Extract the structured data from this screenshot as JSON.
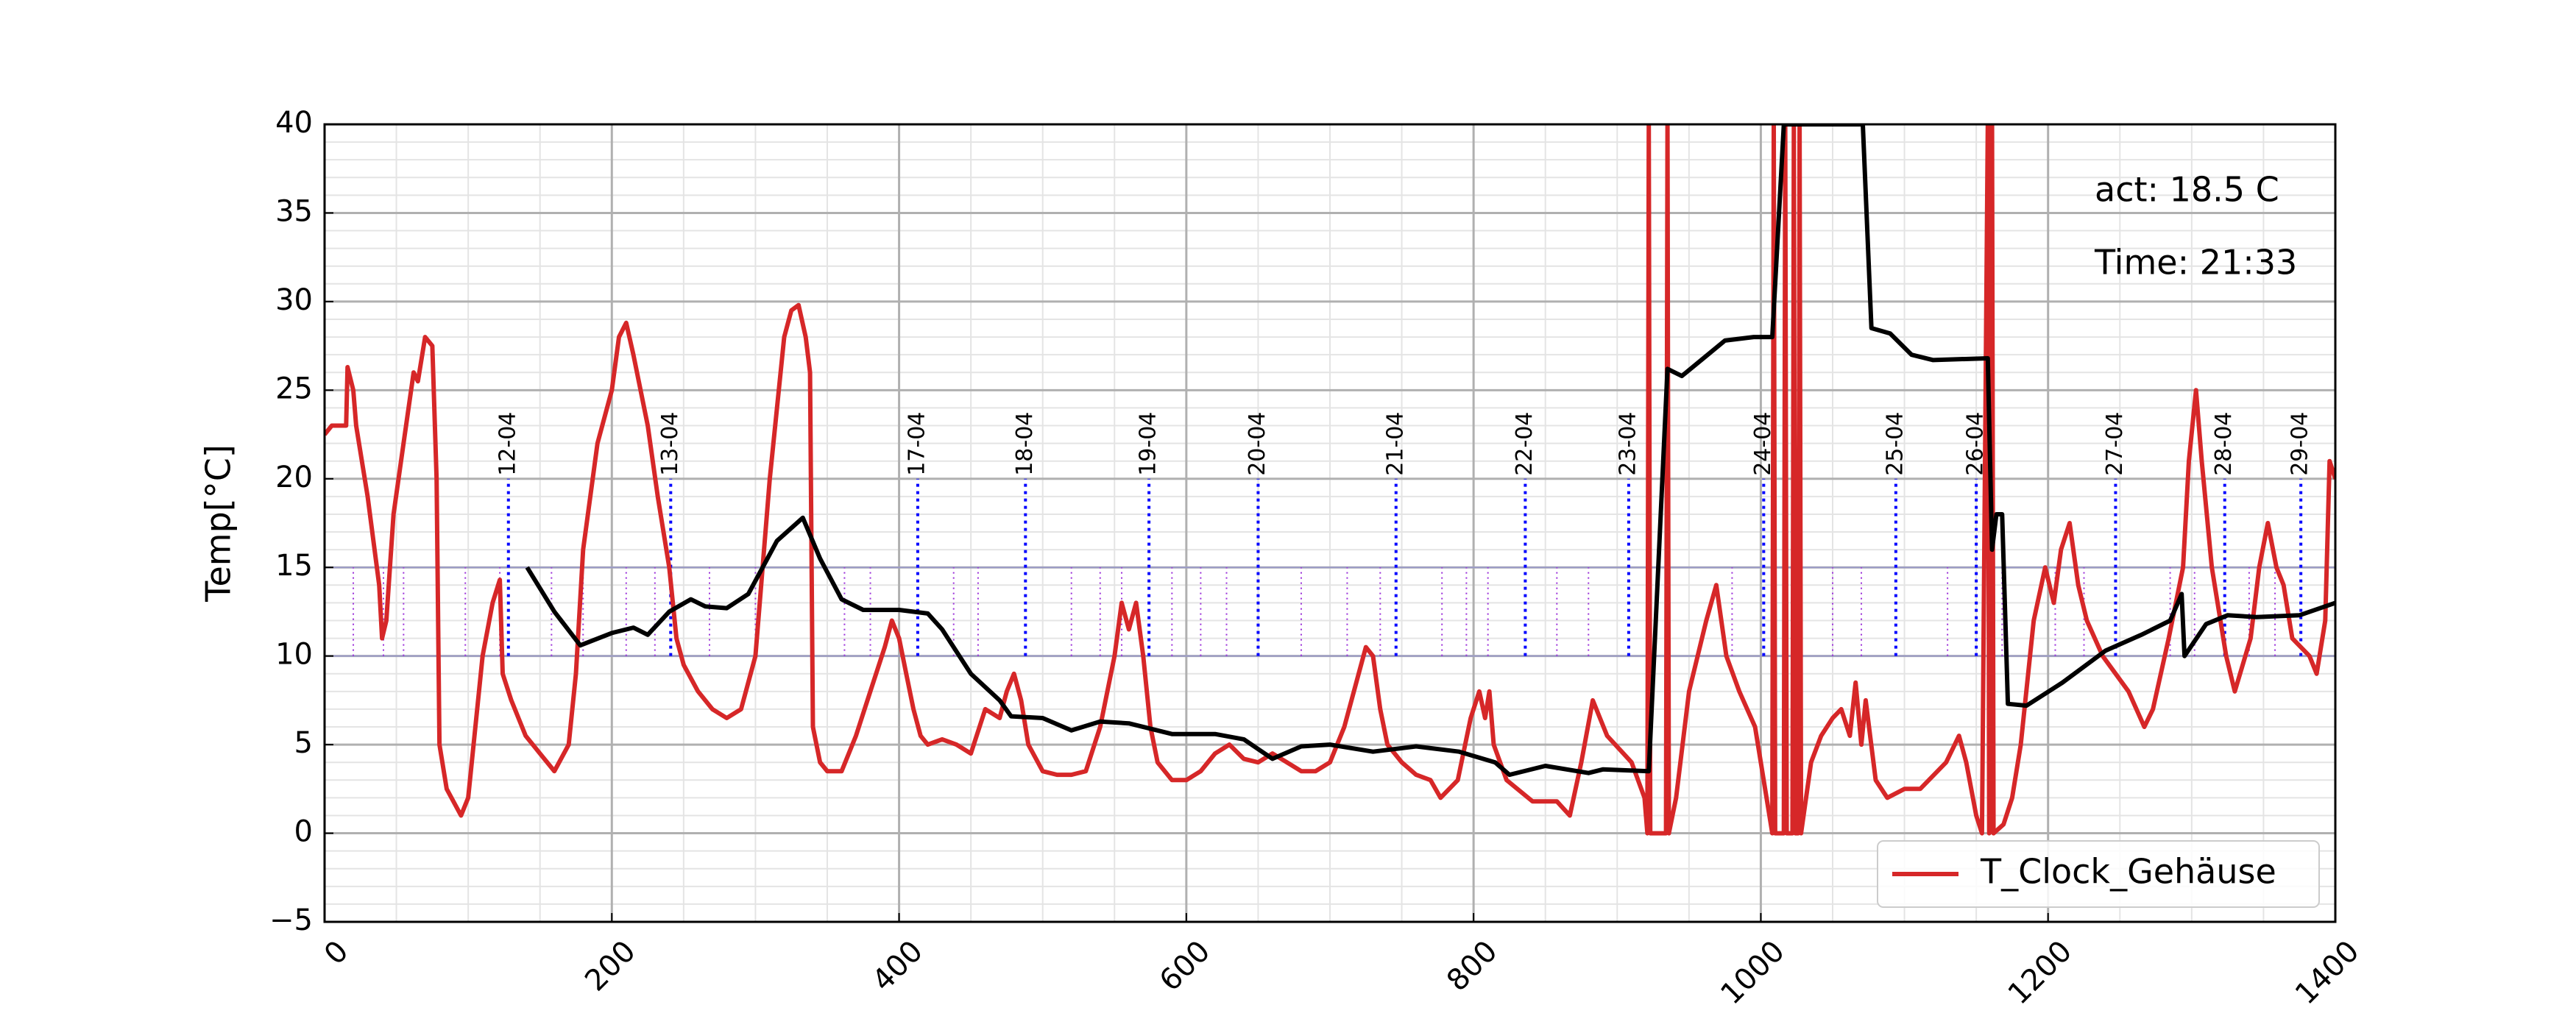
{
  "chart_data": {
    "type": "line",
    "ylabel": "Temp[°C]",
    "xlim": [
      0,
      1400
    ],
    "ylim": [
      -5,
      40
    ],
    "xticks": [
      0,
      200,
      400,
      600,
      800,
      1000,
      1200,
      1400
    ],
    "yticks": [
      {
        "value": -5,
        "label": "−5"
      },
      0,
      5,
      10,
      15,
      20,
      25,
      30,
      35,
      40
    ],
    "xminorticks": [
      50,
      100,
      150,
      250,
      300,
      350,
      450,
      500,
      550,
      650,
      700,
      750,
      850,
      900,
      950,
      1050,
      1100,
      1150,
      1250,
      1300,
      1350
    ],
    "yminorticks": [
      -4,
      -3,
      -2,
      -1,
      1,
      2,
      3,
      4,
      6,
      7,
      8,
      9,
      11,
      12,
      13,
      14,
      16,
      17,
      18,
      19,
      21,
      22,
      23,
      24,
      26,
      27,
      28,
      29,
      31,
      32,
      33,
      34,
      36,
      37,
      38,
      39
    ],
    "grid": true,
    "legend": "lower right",
    "annotations": [
      "act: 18.5 C",
      "Time: 21:33"
    ],
    "band": [
      10,
      15
    ],
    "marker_span": [
      10,
      20
    ],
    "day_markers": [
      {
        "x": 128,
        "label": "12-04"
      },
      {
        "x": 241,
        "label": "13-04"
      },
      {
        "x": 413,
        "label": "17-04"
      },
      {
        "x": 488,
        "label": "18-04"
      },
      {
        "x": 574,
        "label": "19-04"
      },
      {
        "x": 650,
        "label": "20-04"
      },
      {
        "x": 746,
        "label": "21-04"
      },
      {
        "x": 836,
        "label": "22-04"
      },
      {
        "x": 908,
        "label": "23-04"
      },
      {
        "x": 1002,
        "label": "24-04"
      },
      {
        "x": 1094,
        "label": "25-04"
      },
      {
        "x": 1150,
        "label": "26-04"
      },
      {
        "x": 1247,
        "label": "27-04"
      },
      {
        "x": 1323,
        "label": "28-04"
      },
      {
        "x": 1376,
        "label": "29-04"
      }
    ],
    "hour_marks": [
      20,
      41,
      55,
      98,
      122,
      158,
      180,
      210,
      230,
      268,
      300,
      340,
      362,
      380,
      438,
      455,
      520,
      540,
      555,
      590,
      610,
      628,
      680,
      712,
      735,
      778,
      795,
      810,
      858,
      880,
      935,
      980,
      1050,
      1070,
      1130,
      1168,
      1205,
      1225,
      1285,
      1302,
      1340,
      1358
    ],
    "series": [
      {
        "name": "T_Clock_Gehäuse",
        "color": "#d62728",
        "x": [
          0,
          5,
          15,
          16,
          20,
          22,
          30,
          38,
          40,
          43,
          48,
          55,
          62,
          65,
          70,
          75,
          78,
          80,
          85,
          95,
          100,
          105,
          110,
          117,
          122,
          124,
          130,
          140,
          150,
          160,
          170,
          175,
          180,
          190,
          200,
          205,
          210,
          215,
          225,
          232,
          240,
          245,
          250,
          260,
          270,
          280,
          290,
          300,
          310,
          315,
          320,
          325,
          330,
          335,
          338,
          340,
          345,
          350,
          360,
          370,
          380,
          390,
          395,
          400,
          405,
          410,
          415,
          420,
          430,
          440,
          450,
          460,
          470,
          475,
          480,
          485,
          490,
          500,
          510,
          520,
          530,
          540,
          550,
          555,
          560,
          565,
          570,
          575,
          580,
          590,
          600,
          610,
          620,
          630,
          640,
          650,
          660,
          670,
          680,
          690,
          700,
          710,
          720,
          725,
          730,
          735,
          740,
          750,
          760,
          770,
          777,
          789,
          798,
          804,
          808,
          811,
          814,
          823,
          841,
          858,
          867,
          875,
          883,
          893,
          910,
          919,
          921,
          922,
          923,
          934,
          935,
          936,
          941,
          950,
          962,
          969,
          976,
          985,
          996,
          1002,
          1008,
          1009,
          1010,
          1016,
          1017,
          1018,
          1022,
          1023,
          1024,
          1026,
          1027,
          1028,
          1035,
          1042,
          1050,
          1056,
          1062,
          1066,
          1070,
          1073,
          1080,
          1088,
          1100,
          1111,
          1129,
          1138,
          1143,
          1150,
          1154,
          1158,
          1159,
          1161,
          1162,
          1169,
          1175,
          1181,
          1190,
          1198,
          1204,
          1209,
          1215,
          1221,
          1227,
          1238,
          1256,
          1267,
          1273,
          1284,
          1294,
          1298,
          1303,
          1307,
          1314,
          1324,
          1330,
          1341,
          1347,
          1353,
          1359,
          1364,
          1370,
          1382,
          1387,
          1393,
          1396,
          1400
        ],
        "values": [
          22.5,
          23,
          23,
          26.3,
          25,
          23,
          19,
          14,
          11,
          12,
          18,
          22,
          26,
          25.5,
          28,
          27.5,
          20,
          5,
          2.5,
          1,
          2,
          6,
          10,
          13,
          14.3,
          9,
          7.5,
          5.5,
          4.5,
          3.5,
          5,
          9,
          16,
          22,
          25,
          28,
          28.8,
          27,
          23,
          19,
          15,
          11,
          9.5,
          8,
          7,
          6.5,
          7,
          10,
          20,
          24,
          28,
          29.5,
          29.8,
          28,
          26,
          6,
          4,
          3.5,
          3.5,
          5.5,
          8,
          10.5,
          12,
          11,
          9,
          7,
          5.5,
          5,
          5.3,
          5,
          4.5,
          7,
          6.5,
          8,
          9,
          7.5,
          5,
          3.5,
          3.3,
          3.3,
          3.5,
          6,
          10,
          13,
          11.5,
          13,
          10,
          6,
          4,
          3,
          3,
          3.5,
          4.5,
          5,
          4.2,
          4,
          4.5,
          4,
          3.5,
          3.5,
          4,
          6,
          9,
          10.5,
          10,
          7,
          5,
          4,
          3.3,
          3,
          2,
          3,
          6.5,
          8,
          6.5,
          8,
          5,
          3,
          1.8,
          1.8,
          1,
          4,
          7.5,
          5.5,
          4,
          2,
          0,
          40,
          0,
          0,
          40,
          0,
          2,
          8,
          12,
          14,
          10,
          8,
          6,
          3,
          0,
          40,
          0,
          0,
          40,
          0,
          0,
          40,
          0,
          0,
          40,
          0,
          4,
          5.5,
          6.5,
          7,
          5.5,
          8.5,
          5,
          7.5,
          3,
          2,
          2.5,
          2.5,
          4,
          5.5,
          4,
          1,
          0,
          40,
          0,
          40,
          0,
          0.5,
          2,
          5,
          12,
          15,
          13,
          16,
          17.5,
          14,
          12,
          10,
          8,
          6,
          7,
          11,
          15,
          21,
          25,
          21,
          15,
          10,
          8,
          11,
          15,
          17.5,
          15,
          14,
          11,
          10,
          9,
          12,
          21,
          20
        ]
      },
      {
        "color": "#000000",
        "x": [
          141,
          160,
          178,
          200,
          215,
          225,
          240,
          255,
          265,
          280,
          295,
          315,
          333,
          345,
          360,
          375,
          400,
          420,
          430,
          450,
          470,
          478,
          500,
          520,
          540,
          560,
          590,
          620,
          640,
          660,
          680,
          700,
          730,
          760,
          790,
          815,
          825,
          850,
          880,
          890,
          922,
          935,
          945,
          960,
          975,
          995,
          1008,
          1016,
          1071,
          1077,
          1090,
          1105,
          1120,
          1158,
          1161,
          1164,
          1168,
          1172,
          1185,
          1210,
          1240,
          1265,
          1285,
          1293,
          1295,
          1310,
          1325,
          1345,
          1375,
          1400
        ],
        "values": [
          15,
          12.5,
          10.6,
          11.3,
          11.6,
          11.2,
          12.5,
          13.2,
          12.8,
          12.7,
          13.5,
          16.5,
          17.8,
          15.5,
          13.2,
          12.6,
          12.6,
          12.4,
          11.5,
          9,
          7.5,
          6.6,
          6.5,
          5.8,
          6.3,
          6.2,
          5.6,
          5.6,
          5.3,
          4.2,
          4.9,
          5,
          4.6,
          4.9,
          4.6,
          4,
          3.3,
          3.8,
          3.4,
          3.6,
          3.5,
          26.2,
          25.8,
          26.8,
          27.8,
          28,
          28,
          40,
          40,
          28.5,
          28.2,
          27,
          26.7,
          26.8,
          16,
          18,
          18,
          7.3,
          7.2,
          8.5,
          10.3,
          11.2,
          12,
          13.5,
          10,
          11.8,
          12.3,
          12.2,
          12.3,
          13
        ]
      }
    ]
  }
}
